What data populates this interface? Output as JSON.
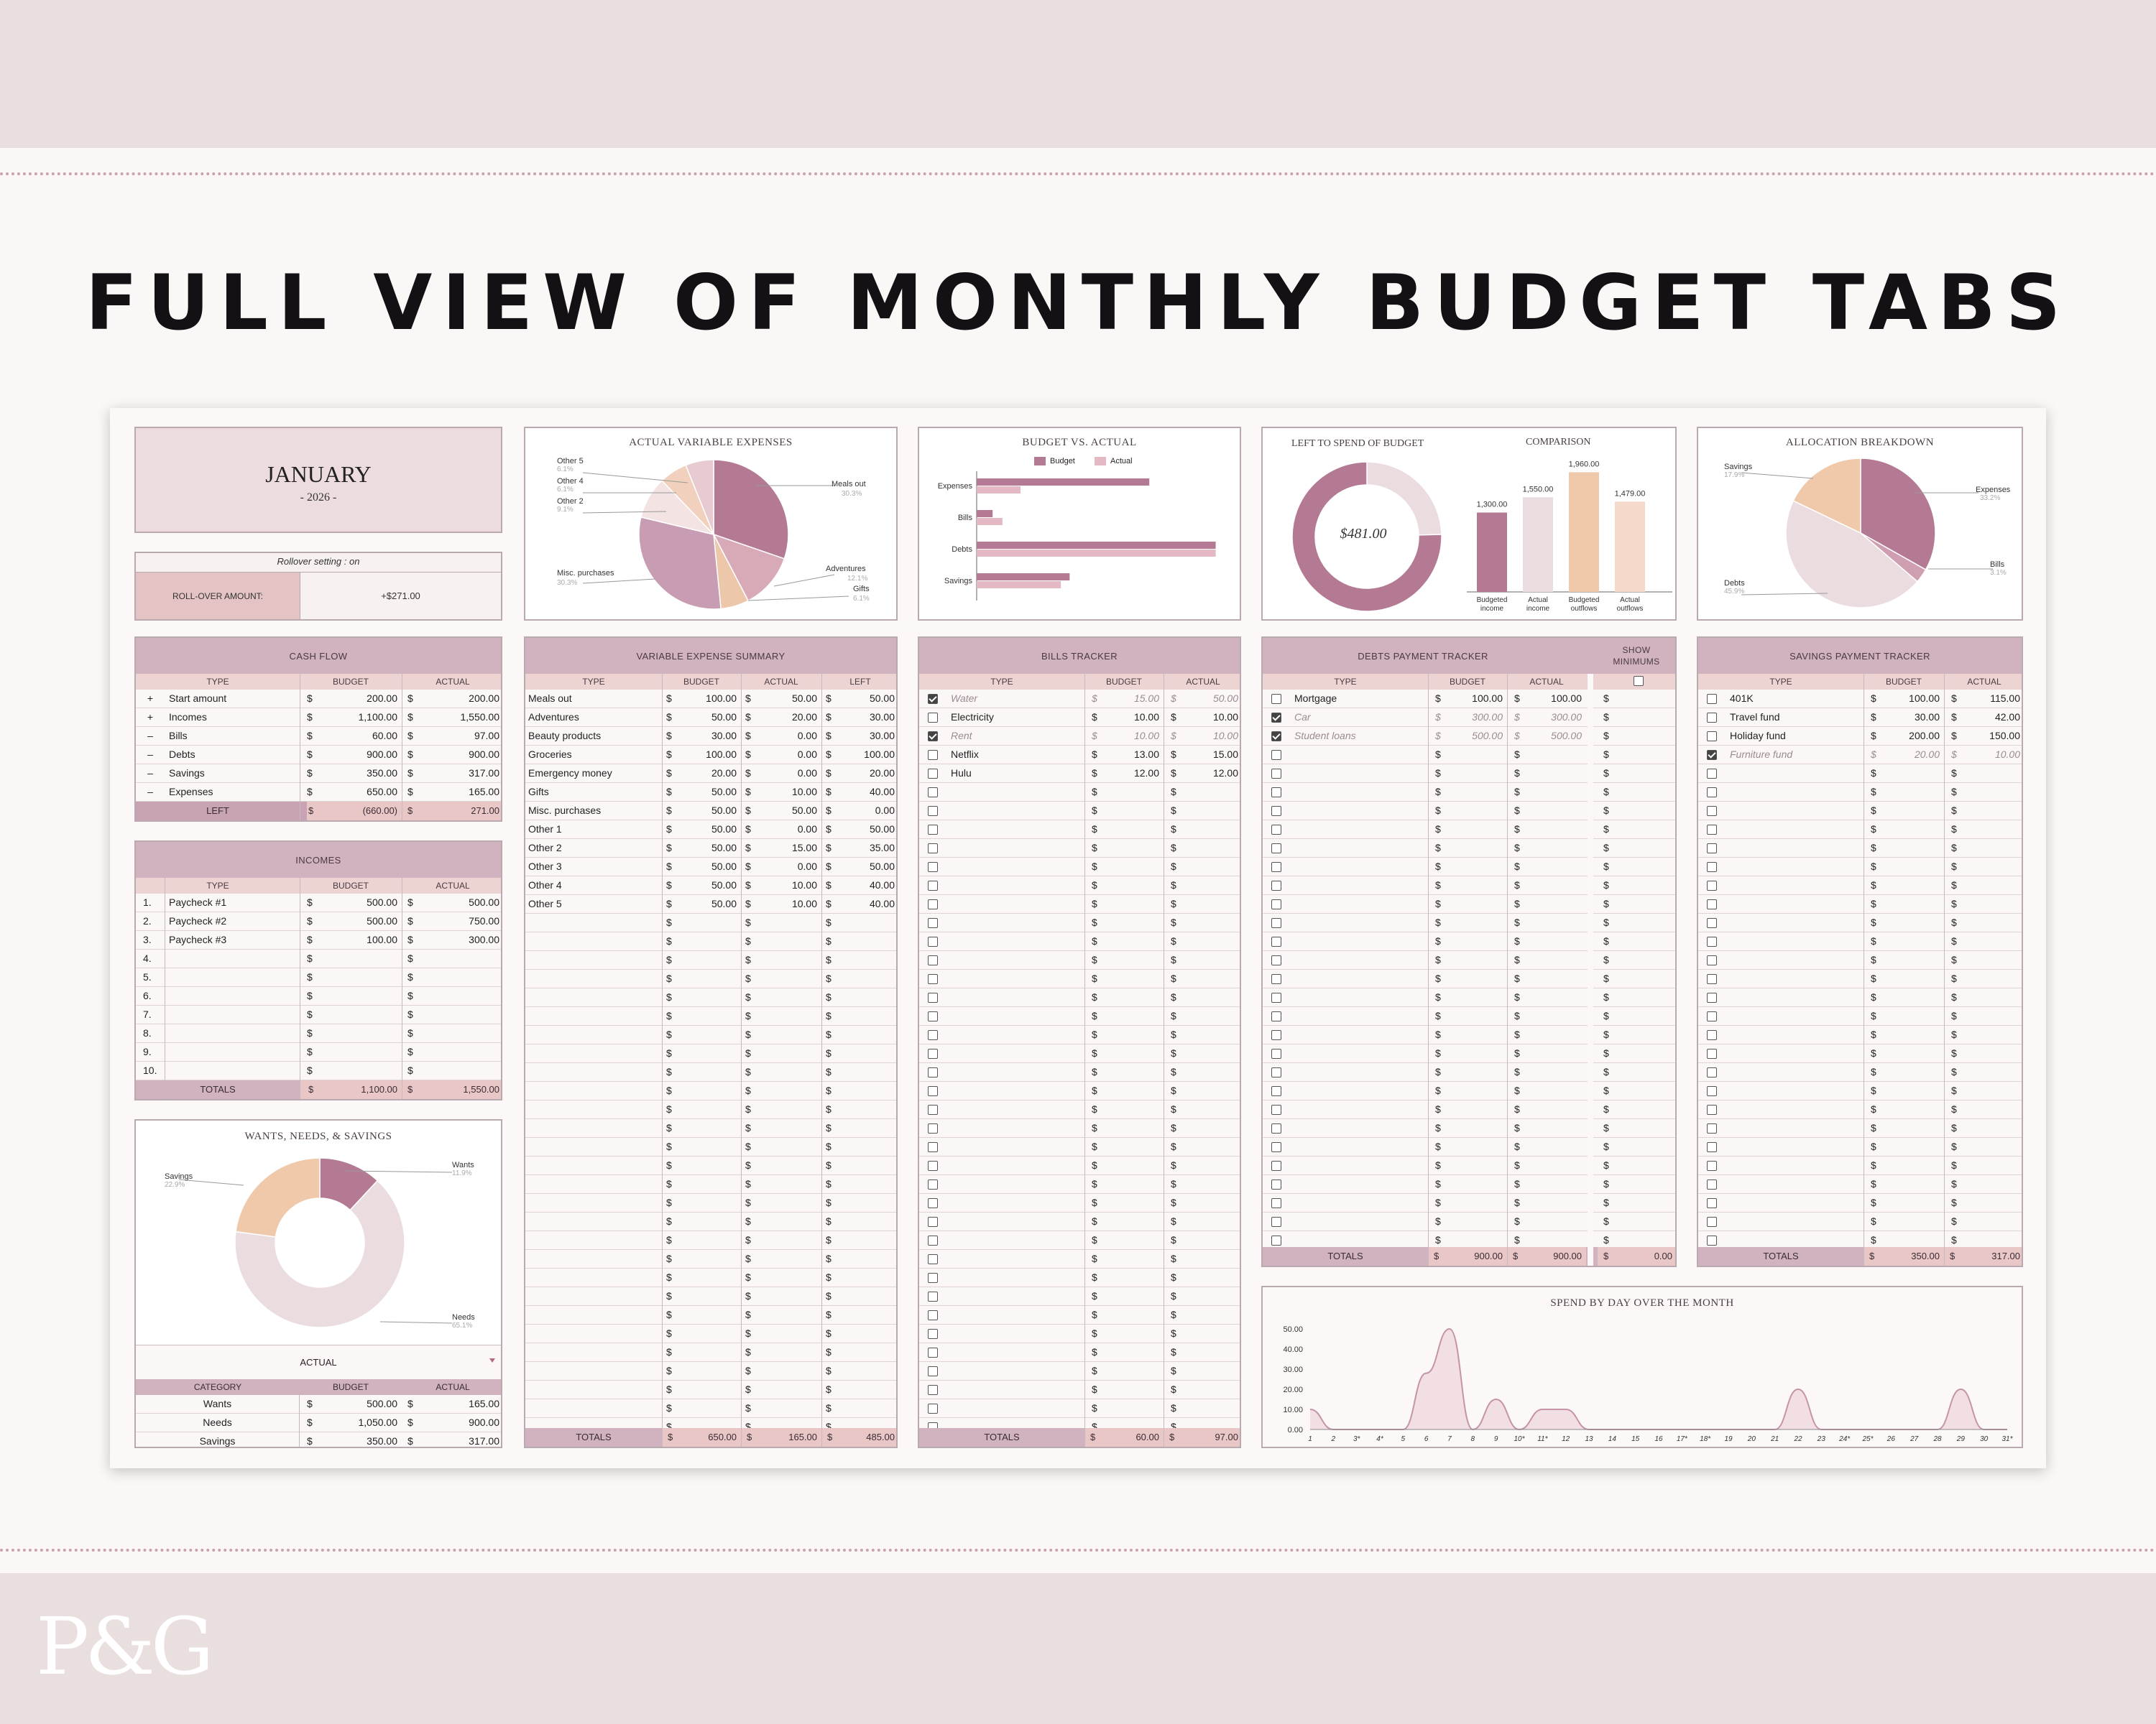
{
  "headline": "FULL VIEW OF MONTHLY BUDGET TABS",
  "logo": "P&G",
  "colors": {
    "band": "#eadfdf",
    "header": "#d1b2bf",
    "mauve": "#b47a93",
    "peach": "#f0c9ab",
    "blush": "#eadcdf"
  },
  "month": {
    "name": "JANUARY",
    "year": "- 2026 -"
  },
  "rollover": {
    "setting": "Rollover setting :  on",
    "label": "ROLL-OVER AMOUNT:",
    "amount": "+$271.00"
  },
  "cols": {
    "type": "TYPE",
    "budget": "BUDGET",
    "actual": "ACTUAL",
    "left": "LEFT",
    "category": "CATEGORY",
    "totals": "TOTALS",
    "dollar": "$"
  },
  "cashflow": {
    "title": "CASH FLOW",
    "rows": [
      {
        "sign": "+",
        "type": "Start amount",
        "budget": "200.00",
        "actual": "200.00"
      },
      {
        "sign": "+",
        "type": "Incomes",
        "budget": "1,100.00",
        "actual": "1,550.00"
      },
      {
        "sign": "–",
        "type": "Bills",
        "budget": "60.00",
        "actual": "97.00"
      },
      {
        "sign": "–",
        "type": "Debts",
        "budget": "900.00",
        "actual": "900.00"
      },
      {
        "sign": "–",
        "type": "Savings",
        "budget": "350.00",
        "actual": "317.00"
      },
      {
        "sign": "–",
        "type": "Expenses",
        "budget": "650.00",
        "actual": "165.00"
      }
    ],
    "left_label": "LEFT",
    "left_budget": "(660.00)",
    "left_actual": "271.00"
  },
  "incomes": {
    "title": "INCOMES",
    "rows": [
      {
        "n": "1.",
        "type": "Paycheck #1",
        "budget": "500.00",
        "actual": "500.00"
      },
      {
        "n": "2.",
        "type": "Paycheck #2",
        "budget": "500.00",
        "actual": "750.00"
      },
      {
        "n": "3.",
        "type": "Paycheck #3",
        "budget": "100.00",
        "actual": "300.00"
      },
      {
        "n": "4.",
        "type": "",
        "budget": "",
        "actual": ""
      },
      {
        "n": "5.",
        "type": "",
        "budget": "",
        "actual": ""
      },
      {
        "n": "6.",
        "type": "",
        "budget": "",
        "actual": ""
      },
      {
        "n": "7.",
        "type": "",
        "budget": "",
        "actual": ""
      },
      {
        "n": "8.",
        "type": "",
        "budget": "",
        "actual": ""
      },
      {
        "n": "9.",
        "type": "",
        "budget": "",
        "actual": ""
      },
      {
        "n": "10.",
        "type": "",
        "budget": "",
        "actual": ""
      }
    ],
    "total_budget": "1,100.00",
    "total_actual": "1,550.00"
  },
  "wants_needs": {
    "title": "WANTS, NEEDS, & SAVINGS",
    "dropdown": "ACTUAL",
    "rows": [
      {
        "category": "Wants",
        "budget": "500.00",
        "actual": "165.00"
      },
      {
        "category": "Needs",
        "budget": "1,050.00",
        "actual": "900.00"
      },
      {
        "category": "Savings",
        "budget": "350.00",
        "actual": "317.00"
      }
    ]
  },
  "variable_expenses": {
    "title": "VARIABLE EXPENSE SUMMARY",
    "rows": [
      {
        "type": "Meals out",
        "budget": "100.00",
        "actual": "50.00",
        "left": "50.00"
      },
      {
        "type": "Adventures",
        "budget": "50.00",
        "actual": "20.00",
        "left": "30.00"
      },
      {
        "type": "Beauty products",
        "budget": "30.00",
        "actual": "0.00",
        "left": "30.00"
      },
      {
        "type": "Groceries",
        "budget": "100.00",
        "actual": "0.00",
        "left": "100.00"
      },
      {
        "type": "Emergency money",
        "budget": "20.00",
        "actual": "0.00",
        "left": "20.00"
      },
      {
        "type": "Gifts",
        "budget": "50.00",
        "actual": "10.00",
        "left": "40.00"
      },
      {
        "type": "Misc. purchases",
        "budget": "50.00",
        "actual": "50.00",
        "left": "0.00"
      },
      {
        "type": "Other 1",
        "budget": "50.00",
        "actual": "0.00",
        "left": "50.00"
      },
      {
        "type": "Other 2",
        "budget": "50.00",
        "actual": "15.00",
        "left": "35.00"
      },
      {
        "type": "Other 3",
        "budget": "50.00",
        "actual": "0.00",
        "left": "50.00"
      },
      {
        "type": "Other 4",
        "budget": "50.00",
        "actual": "10.00",
        "left": "40.00"
      },
      {
        "type": "Other 5",
        "budget": "50.00",
        "actual": "10.00",
        "left": "40.00"
      }
    ],
    "total_budget": "650.00",
    "total_actual": "165.00",
    "total_left": "485.00"
  },
  "bills": {
    "title": "BILLS TRACKER",
    "rows": [
      {
        "checked": true,
        "type": "Water",
        "budget": "15.00",
        "actual": "50.00"
      },
      {
        "checked": false,
        "type": "Electricity",
        "budget": "10.00",
        "actual": "10.00"
      },
      {
        "checked": true,
        "type": "Rent",
        "budget": "10.00",
        "actual": "10.00"
      },
      {
        "checked": false,
        "type": "Netflix",
        "budget": "13.00",
        "actual": "15.00"
      },
      {
        "checked": false,
        "type": "Hulu",
        "budget": "12.00",
        "actual": "12.00"
      }
    ],
    "total_budget": "60.00",
    "total_actual": "97.00"
  },
  "debts": {
    "title": "DEBTS PAYMENT TRACKER",
    "show_minimums": "SHOW MINIMUMS",
    "rows": [
      {
        "checked": false,
        "type": "Mortgage",
        "budget": "100.00",
        "actual": "100.00"
      },
      {
        "checked": true,
        "type": "Car",
        "budget": "300.00",
        "actual": "300.00"
      },
      {
        "checked": true,
        "type": "Student loans",
        "budget": "500.00",
        "actual": "500.00"
      }
    ],
    "total_budget": "900.00",
    "total_actual": "900.00",
    "total_min": "0.00"
  },
  "savings": {
    "title": "SAVINGS PAYMENT TRACKER",
    "rows": [
      {
        "checked": false,
        "type": "401K",
        "budget": "100.00",
        "actual": "115.00"
      },
      {
        "checked": false,
        "type": "Travel fund",
        "budget": "30.00",
        "actual": "42.00"
      },
      {
        "checked": false,
        "type": "Holiday fund",
        "budget": "200.00",
        "actual": "150.00"
      },
      {
        "checked": true,
        "type": "Furniture fund",
        "budget": "20.00",
        "actual": "10.00"
      }
    ],
    "total_budget": "350.00",
    "total_actual": "317.00"
  },
  "chart_data": [
    {
      "type": "pie",
      "title": "ACTUAL VARIABLE EXPENSES",
      "labels": [
        "Meals out",
        "Adventures",
        "Gifts",
        "Misc. purchases",
        "Other 2",
        "Other 4",
        "Other 5"
      ],
      "values": [
        30.3,
        12.1,
        6.1,
        30.3,
        9.1,
        6.1,
        6.1
      ],
      "label_text": [
        "Meals out",
        "Adventures",
        "Gifts",
        "Misc. purchases",
        "Other 2",
        "Other 4",
        "Other 5"
      ],
      "pct_text": [
        "30.3%",
        "12.1%",
        "6.1%",
        "30.3%",
        "9.1%",
        "6.1%",
        "6.1%"
      ]
    },
    {
      "type": "bar",
      "title": "BUDGET VS. ACTUAL",
      "orientation": "horizontal",
      "categories": [
        "Expenses",
        "Bills",
        "Debts",
        "Savings"
      ],
      "series": [
        {
          "name": "Budget",
          "values": [
            650,
            60,
            900,
            350
          ]
        },
        {
          "name": "Actual",
          "values": [
            165,
            97,
            900,
            317
          ]
        }
      ],
      "xlim": [
        0,
        920
      ]
    },
    {
      "type": "pie",
      "title": "LEFT TO SPEND OF BUDGET",
      "donut": true,
      "center_label": "$481.00",
      "values": [
        481,
        1479
      ]
    },
    {
      "type": "bar",
      "title": "COMPARISON",
      "categories": [
        "Budgeted income",
        "Actual income",
        "Budgeted outflows",
        "Actual outflows"
      ],
      "values": [
        1300,
        1550,
        1960,
        1479
      ],
      "value_labels": [
        "1,300.00",
        "1,550.00",
        "1,960.00",
        "1,479.00"
      ],
      "ylim": [
        0,
        2000
      ]
    },
    {
      "type": "pie",
      "title": "ALLOCATION BREAKDOWN",
      "labels": [
        "Expenses",
        "Bills",
        "Debts",
        "Savings"
      ],
      "values": [
        33.2,
        3.1,
        45.9,
        17.9
      ],
      "pct_text": [
        "33.2%",
        "3.1%",
        "45.9%",
        "17.9%"
      ]
    },
    {
      "type": "pie",
      "title": "WANTS, NEEDS, & SAVINGS",
      "donut": true,
      "labels": [
        "Wants",
        "Needs",
        "Savings"
      ],
      "values": [
        11.9,
        65.1,
        22.9
      ],
      "pct_text": [
        "11.9%",
        "65.1%",
        "22.9%"
      ]
    },
    {
      "type": "area",
      "title": "SPEND BY DAY OVER THE MONTH",
      "x": [
        "1",
        "2",
        "3*",
        "4*",
        "5",
        "6",
        "7",
        "8",
        "9",
        "10*",
        "11*",
        "12",
        "13",
        "14",
        "15",
        "16",
        "17*",
        "18*",
        "19",
        "20",
        "21",
        "22",
        "23",
        "24*",
        "25*",
        "26",
        "27",
        "28",
        "29",
        "30",
        "31*"
      ],
      "y": [
        10,
        0,
        0,
        0,
        0,
        28,
        50,
        0,
        15,
        0,
        10,
        10,
        0,
        0,
        0,
        0,
        0,
        0,
        0,
        0,
        0,
        20,
        0,
        0,
        0,
        0,
        0,
        0,
        20,
        0,
        0
      ],
      "ylim": [
        0,
        50
      ],
      "yticks": [
        "50.00",
        "40.00",
        "30.00",
        "20.00",
        "10.00",
        "0.00"
      ]
    }
  ]
}
